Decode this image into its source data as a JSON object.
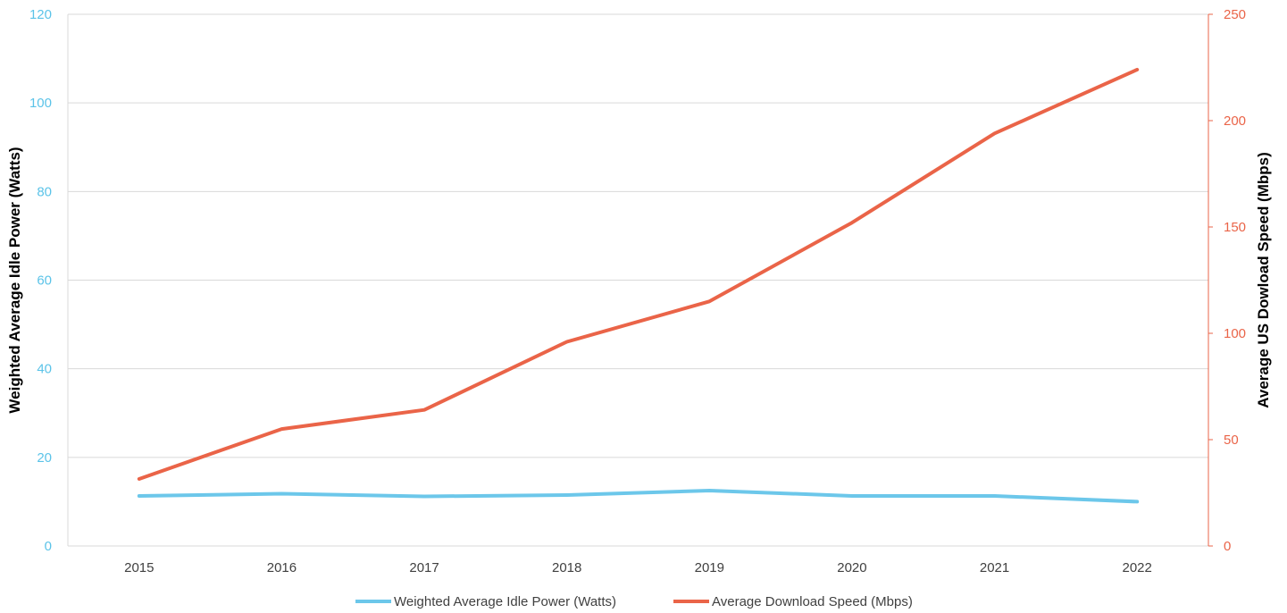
{
  "chart_data": {
    "type": "line",
    "categories": [
      "2015",
      "2016",
      "2017",
      "2018",
      "2019",
      "2020",
      "2021",
      "2022"
    ],
    "series": [
      {
        "name": "Weighted Average Idle Power (Watts)",
        "axis": "left",
        "color": "#6CC7EA",
        "values": [
          11.3,
          11.8,
          11.2,
          11.5,
          12.5,
          11.3,
          11.3,
          10.0
        ]
      },
      {
        "name": "Average Download Speed (Mbps)",
        "axis": "right",
        "color": "#EA6448",
        "values": [
          31.5,
          55,
          64,
          96,
          115,
          152,
          194,
          224
        ]
      }
    ],
    "y_left": {
      "label": "Weighted Average Idle Power (Watts)",
      "range": [
        0,
        120
      ],
      "ticks": [
        "0",
        "20",
        "40",
        "60",
        "80",
        "100",
        "120"
      ],
      "tick_color": "#5BC3E8"
    },
    "y_right": {
      "label": "Average US Dowload Speed (Mbps)",
      "range": [
        0,
        250
      ],
      "ticks": [
        "0",
        "50",
        "100",
        "150",
        "200",
        "250"
      ],
      "tick_color": "#EA6448"
    },
    "grid": true,
    "legend_position": "bottom"
  }
}
